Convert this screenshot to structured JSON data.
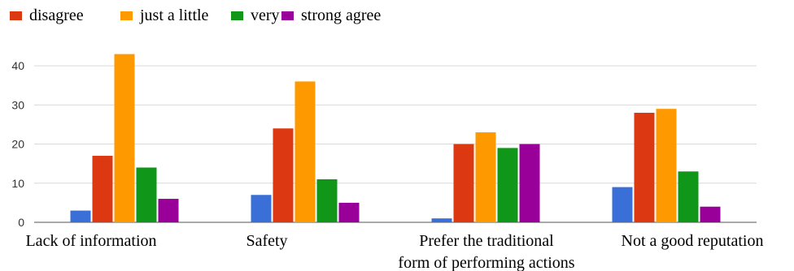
{
  "chart_data": {
    "type": "bar",
    "title": "",
    "xlabel": "",
    "ylabel": "",
    "categories": [
      "Lack of information",
      "Safety",
      "Prefer the traditional form of performing actions",
      "Not a good reputation"
    ],
    "category_lines": [
      [
        "Lack of information"
      ],
      [
        "Safety"
      ],
      [
        "Prefer the traditional",
        "form of performing actions"
      ],
      [
        "Not a good reputation"
      ]
    ],
    "ylim": [
      0,
      45
    ],
    "yticks": [
      0,
      10,
      20,
      30,
      40
    ],
    "grid": true,
    "legend_position": "top-left",
    "legend_labels": [
      "disagree",
      "just a little",
      "very",
      "strong agree"
    ],
    "series": [
      {
        "values": [
          3,
          7,
          1,
          9
        ],
        "color": "#3a6fd8"
      },
      {
        "name": "disagree",
        "values": [
          17,
          24,
          20,
          28
        ],
        "color": "#dc3912"
      },
      {
        "name": "just a little",
        "values": [
          43,
          36,
          23,
          29
        ],
        "color": "#ff9900"
      },
      {
        "name": "very",
        "values": [
          14,
          11,
          19,
          13
        ],
        "color": "#109618"
      },
      {
        "name": "strong agree",
        "values": [
          6,
          5,
          20,
          4
        ],
        "color": "#990099"
      }
    ]
  }
}
